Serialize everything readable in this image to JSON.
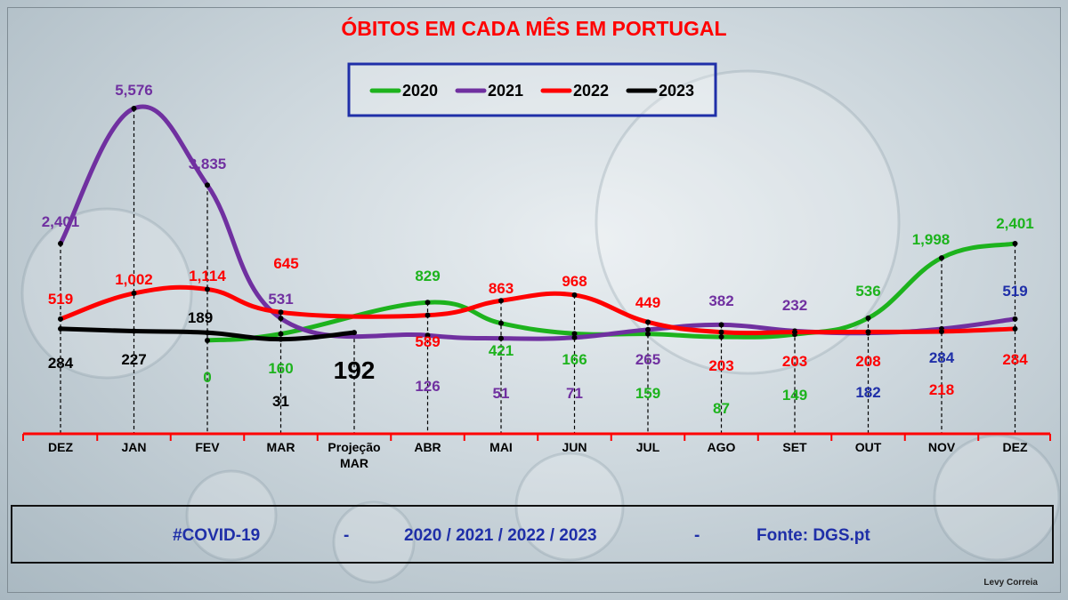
{
  "chart_data": {
    "type": "line",
    "title": "ÓBITOS EM CADA MÊS EM PORTUGAL",
    "categories": [
      "DEZ",
      "JAN",
      "FEV",
      "MAR",
      "Projeção\nMAR",
      "ABR",
      "MAI",
      "JUN",
      "JUL",
      "AGO",
      "SET",
      "OUT",
      "NOV",
      "DEZ"
    ],
    "legend_position": "top-center",
    "grid": false,
    "series": [
      {
        "name": "2020",
        "color": "#1db31d",
        "values": [
          null,
          null,
          0,
          160,
          null,
          829,
          421,
          166,
          159,
          87,
          149,
          536,
          1998,
          2401
        ],
        "labels": [
          null,
          null,
          "0",
          "160",
          null,
          "829",
          "421",
          "166",
          "159",
          "87",
          "149",
          "536",
          "1,998",
          "2,401"
        ]
      },
      {
        "name": "2021",
        "color": "#7030a0",
        "values": [
          2401,
          5576,
          3835,
          531,
          null,
          126,
          51,
          71,
          265,
          382,
          232,
          182,
          284,
          519
        ],
        "labels": [
          "2,401",
          "5,576",
          "3,835",
          "531",
          null,
          "126",
          "51",
          "71",
          "265",
          "382",
          "232",
          "182",
          "284",
          "519"
        ]
      },
      {
        "name": "2022",
        "color": "#ff0000",
        "values": [
          519,
          1002,
          1114,
          645,
          null,
          589,
          863,
          968,
          449,
          203,
          203,
          208,
          218,
          284
        ],
        "labels": [
          "519",
          "1,002",
          "1,114",
          "645",
          null,
          "589",
          "863",
          "968",
          "449",
          "203",
          "203",
          "208",
          "218",
          "284"
        ]
      },
      {
        "name": "2023",
        "color": "#000000",
        "values": [
          284,
          227,
          189,
          31,
          192,
          null,
          null,
          null,
          null,
          null,
          null,
          null,
          null,
          null
        ],
        "labels": [
          "284",
          "227",
          "189",
          "31",
          "192",
          null,
          null,
          null,
          null,
          null,
          null,
          null,
          null,
          null
        ]
      }
    ]
  },
  "footer": {
    "hashtag": "#COVID-19",
    "separator_1": "-",
    "years": "2020 / 2021 / 2022 / 2023",
    "separator_2": "-",
    "source": "Fonte: DGS.pt"
  },
  "author": "Levy Correia",
  "colors": {
    "axis": "#ff0000",
    "title": "#ff0000",
    "legend_border": "#1f2fa8",
    "footer_text": "#1f2fa8",
    "label_dark_blue": "#1f2fa8"
  }
}
